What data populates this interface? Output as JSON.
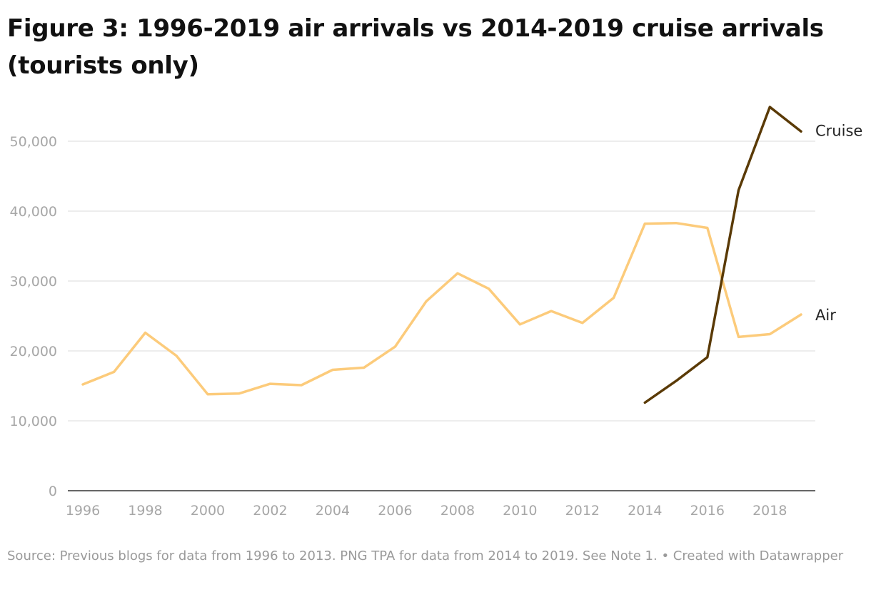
{
  "title": "Figure 3: 1996-2019 air arrivals vs 2014-2019 cruise arrivals (tourists only)",
  "footer": {
    "source": "Source: Previous blogs for data from 1996 to 2013. PNG TPA for data from 2014 to 2019. See Note 1.",
    "separator": " • ",
    "credit": "Created with Datawrapper"
  },
  "chart_data": {
    "type": "line",
    "title": "Figure 3: 1996-2019 air arrivals vs 2014-2019 cruise arrivals (tourists only)",
    "xlabel": "",
    "ylabel": "",
    "xlim": [
      1996,
      2019
    ],
    "ylim": [
      0,
      55000
    ],
    "grid": true,
    "legend": "direct labels at line ends",
    "x_ticks": [
      "1996",
      "1998",
      "2000",
      "2002",
      "2004",
      "2006",
      "2008",
      "2010",
      "2012",
      "2014",
      "2016",
      "2018"
    ],
    "y_ticks": [
      "0",
      "10,000",
      "20,000",
      "30,000",
      "40,000",
      "50,000"
    ],
    "series": [
      {
        "name": "Air",
        "color": "#fccb7b",
        "x": [
          1996,
          1997,
          1998,
          1999,
          2000,
          2001,
          2002,
          2003,
          2004,
          2005,
          2006,
          2007,
          2008,
          2009,
          2010,
          2011,
          2012,
          2013,
          2014,
          2015,
          2016,
          2017,
          2018,
          2019
        ],
        "values": [
          15200,
          17000,
          22600,
          19300,
          13800,
          13900,
          15300,
          15100,
          17300,
          17600,
          20600,
          27100,
          31100,
          28900,
          23800,
          25700,
          24000,
          27600,
          38200,
          38300,
          37600,
          22000,
          22400,
          25200
        ]
      },
      {
        "name": "Cruise",
        "color": "#5a3a06",
        "x": [
          2014,
          2015,
          2016,
          2017,
          2018,
          2019
        ],
        "values": [
          12600,
          15700,
          19100,
          43000,
          54900,
          51400
        ]
      }
    ]
  }
}
